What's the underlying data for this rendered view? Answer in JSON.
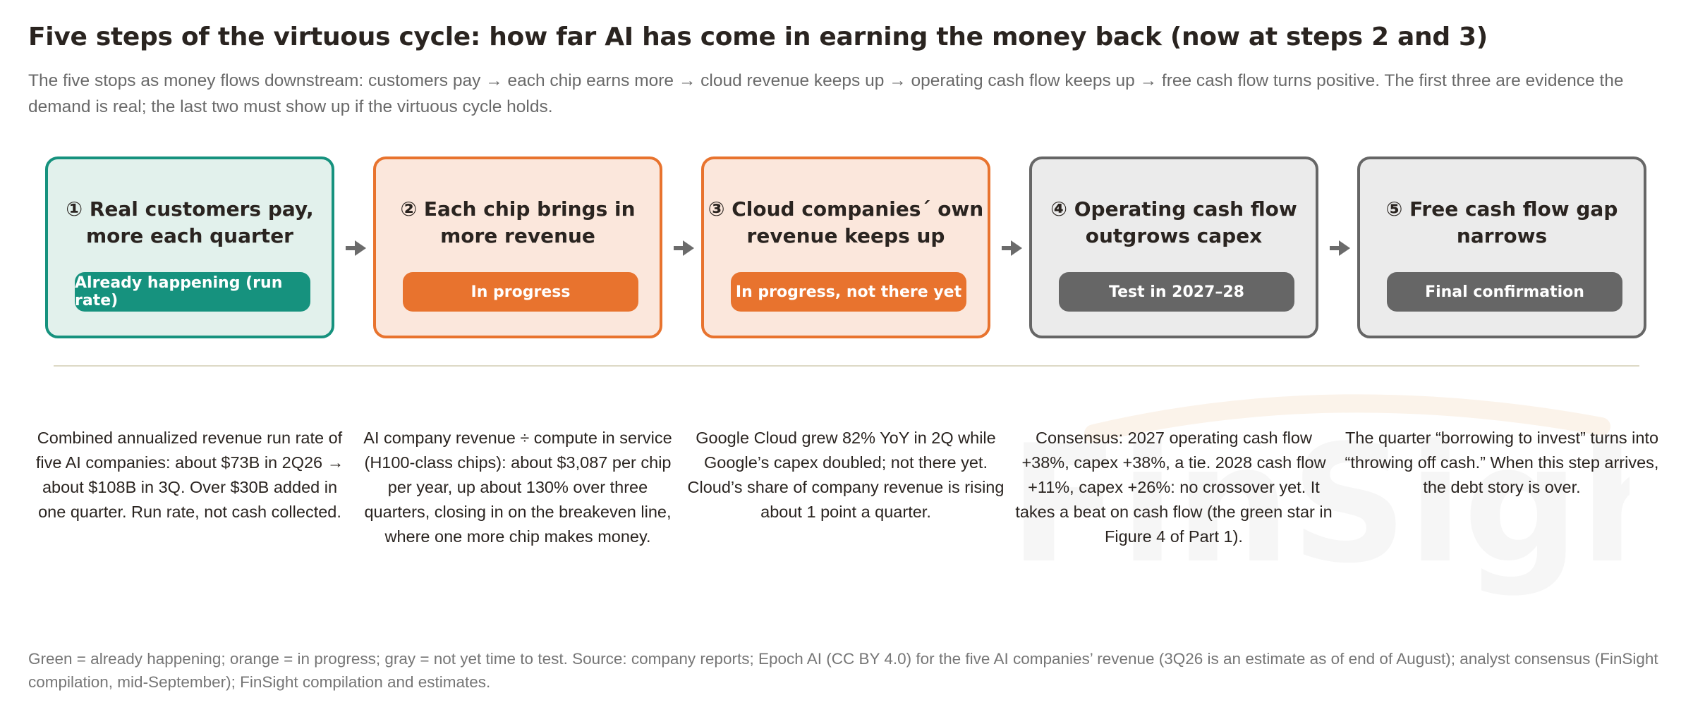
{
  "title": "Five steps of the virtuous cycle: how far AI has come in earning the money back (now at steps 2 and 3)",
  "subtitle": "The five stops as money flows downstream: customers pay → each chip earns more → cloud revenue keeps up → operating cash flow keeps up → free cash flow turns positive. The first three are evidence the demand is real; the last two must show up if the virtuous cycle holds.",
  "colors": {
    "green": "#16927e",
    "green_fill": "#e2f1ec",
    "orange": "#e8732e",
    "orange_fill": "#fbe7dc",
    "gray": "#666666",
    "gray_fill": "#ebebeb",
    "arrow": "#6b6b6b"
  },
  "steps": [
    {
      "status": "green",
      "title_line1": "① Real customers pay,",
      "title_line2": "more each quarter",
      "badge": "Already happening (run rate)",
      "description": "Combined annualized revenue run rate of five AI companies: about $73B in 2Q26 → about $108B in 3Q. Over $30B added in one quarter. Run rate, not cash collected."
    },
    {
      "status": "orange",
      "title_line1": "② Each chip brings in",
      "title_line2": "more revenue",
      "badge": "In progress",
      "description": "AI company revenue ÷ compute in service (H100-class chips): about $3,087 per chip per year, up about 130% over three quarters, closing in on the breakeven line, where one more chip makes money."
    },
    {
      "status": "orange",
      "title_line1": "③ Cloud companies´ own",
      "title_line2": "revenue keeps up",
      "badge": "In progress, not there yet",
      "description": "Google Cloud grew 82% YoY in 2Q while Google’s capex doubled; not there yet. Cloud’s share of company revenue is rising about 1 point a quarter."
    },
    {
      "status": "gray",
      "title_line1": "④ Operating cash flow",
      "title_line2": "outgrows capex",
      "badge": "Test in 2027–28",
      "description": "Consensus: 2027 operating cash flow +38%, capex +38%, a tie. 2028 cash flow +11%, capex +26%: no crossover yet. It takes a beat on cash flow (the green star in Figure 4 of Part 1)."
    },
    {
      "status": "gray",
      "title_line1": "⑤ Free cash flow gap",
      "title_line2": "narrows",
      "badge": "Final confirmation",
      "description": "The quarter “borrowing to invest” turns into “throwing off cash.” When this step arrives, the debt story is over."
    }
  ],
  "watermark": "FinSight",
  "footnote": "Green = already happening; orange = in progress; gray = not yet time to test. Source: company reports; Epoch AI (CC BY 4.0) for the five AI companies’ revenue (3Q26 is an estimate as of end of August); analyst consensus (FinSight compilation, mid-September); FinSight compilation and estimates."
}
